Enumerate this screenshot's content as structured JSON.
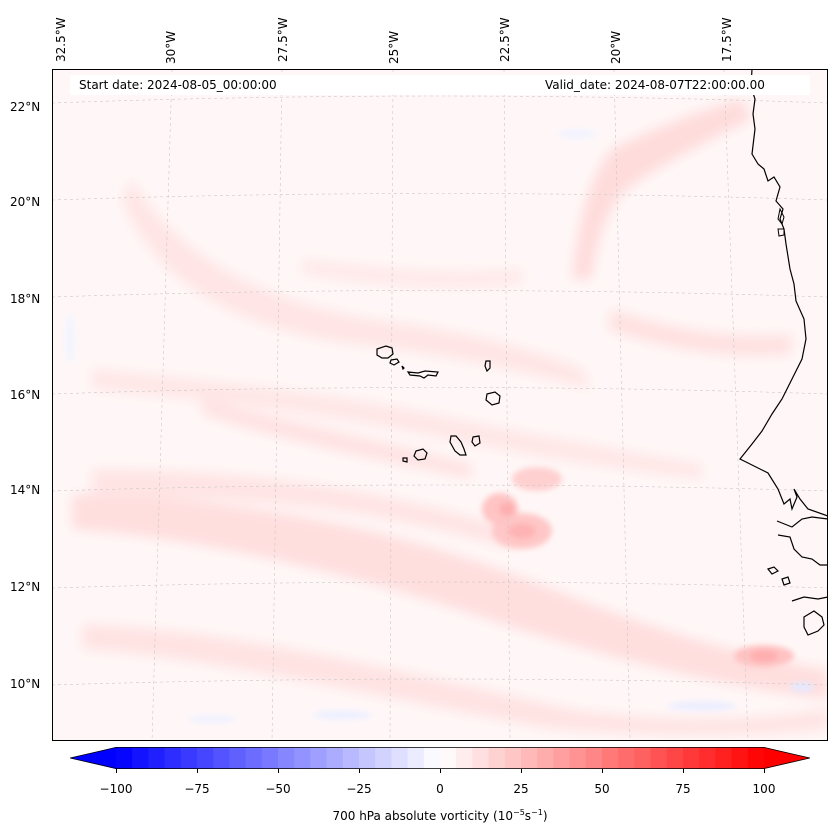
{
  "map": {
    "start_date": "Start date: 2024-08-05_00:00:00",
    "valid_date": "Valid_date: 2024-08-07T22:00:00.00",
    "lon_labels": [
      "32.5°W",
      "30°W",
      "27.5°W",
      "25°W",
      "22.5°W",
      "20°W",
      "17.5°W"
    ],
    "lat_labels": [
      "22°N",
      "20°N",
      "18°N",
      "16°N",
      "14°N",
      "12°N",
      "10°N"
    ],
    "region": "Cape Verde Islands and West African coast",
    "extent": {
      "lon": [
        -32.5,
        -16.0
      ],
      "lat": [
        8.8,
        22.8
      ]
    }
  },
  "colorbar": {
    "label_prefix": "700 hPa absolute vorticity (10",
    "label_exp1": "−5",
    "label_mid": "s",
    "label_exp2": "−1",
    "label_suffix": ")",
    "ticks": [
      "−100",
      "−75",
      "−50",
      "−25",
      "0",
      "25",
      "50",
      "75",
      "100"
    ],
    "range": [
      -100,
      100
    ],
    "step": 5,
    "colormap": "bwr",
    "extend": "both",
    "low_color": "#0000ff",
    "mid_color": "#ffffff",
    "high_color": "#ff0000"
  }
}
